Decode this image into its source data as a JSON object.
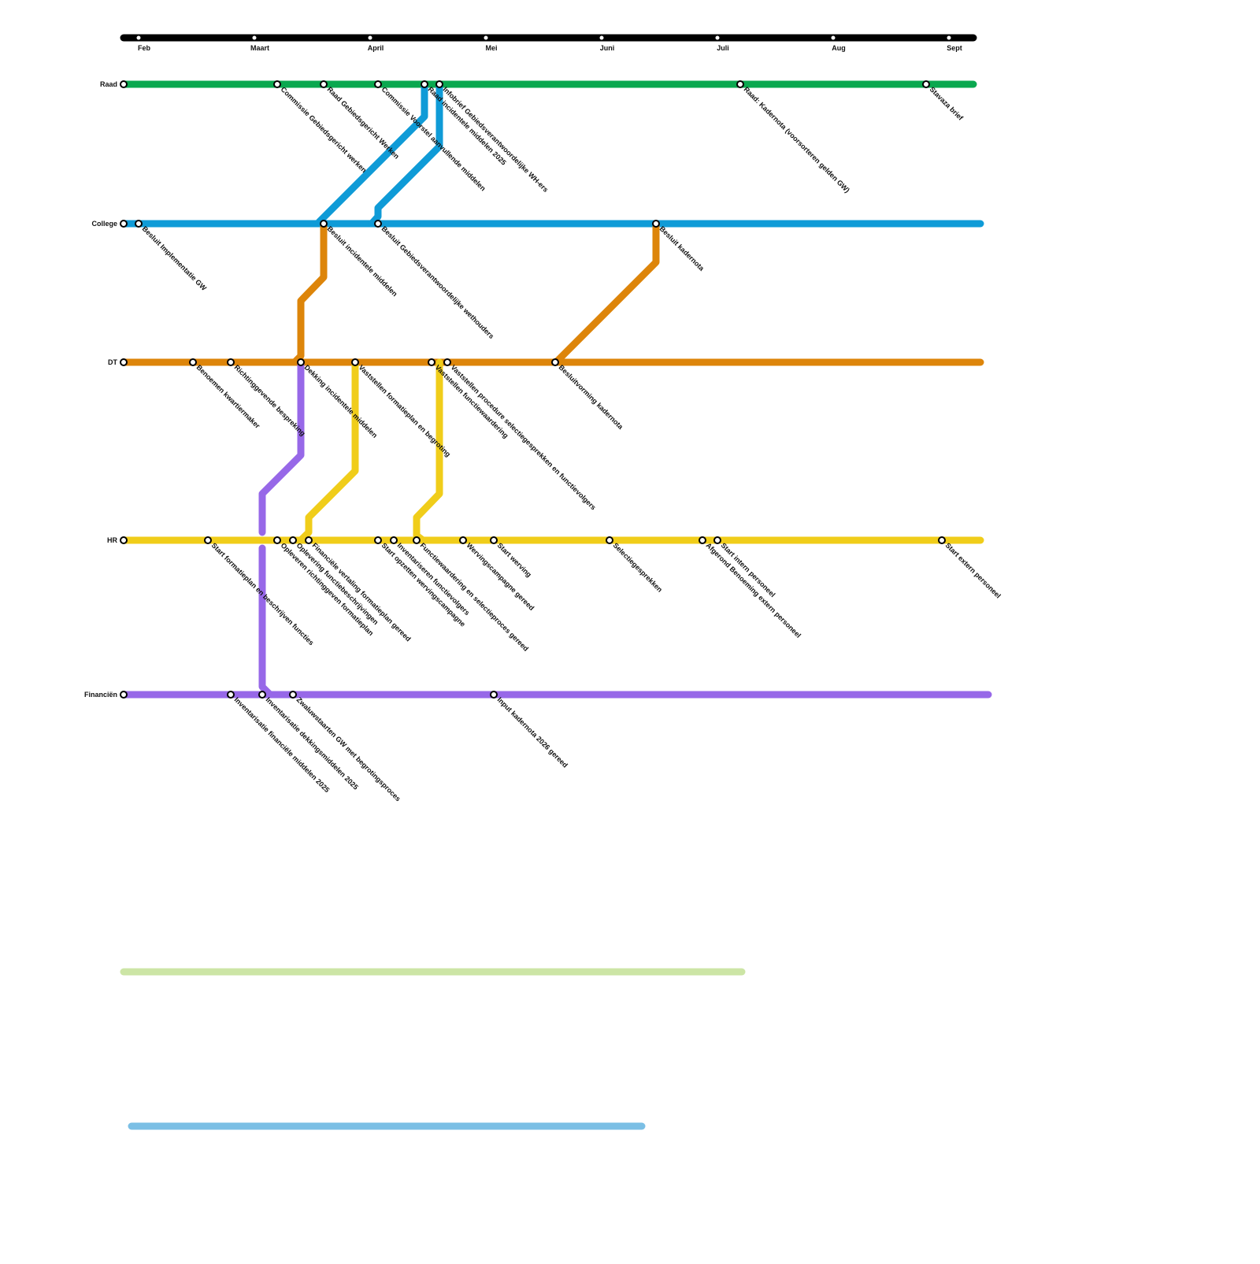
{
  "timeline": {
    "months": [
      "Feb",
      "Maart",
      "April",
      "Mei",
      "Juni",
      "Juli",
      "Aug",
      "Sept"
    ]
  },
  "lines": [
    {
      "name": "Raad",
      "stations": [
        "Commissie Gebiedsgericht werken",
        "Raad Gebiedsgericht Werken",
        "Commissie Voorstel aanvullende middelen",
        "Raad incidentele middelen 2025",
        "Infobrief Gebiedsverantwoordelijke WH-ers",
        "Raad: Kadernota (voorsorteren gelden GW)",
        "Stavaza brief"
      ]
    },
    {
      "name": "College",
      "stations": [
        "Besluit Implementatie GW",
        "Besluit incidentele middelen",
        "Besluit Gebiedsverantwoordelijke wethouders",
        "Besluit kadernota"
      ]
    },
    {
      "name": "DT",
      "stations": [
        "Benoemen kwartiermaker",
        "Richtinggevende bespreking",
        "Dekking incidentele middelen",
        "Vaststellen formatieplan en begroting",
        "Vaststellen functiewaardering",
        "Vaststellen procedure selectiegesprekken en functievolgers",
        "Besluitvorming kadernota"
      ]
    },
    {
      "name": "HR",
      "stations": [
        "Start formatieplan en beschrijven functies",
        "Opleveren richtinggeven formatieplan",
        "Oplevering functiebeschrijvingen",
        "Financiële vertaling formatieplan gereed",
        "Start opzetten wervingscampagne",
        "Inventariseren functievolgers",
        "Functiewaardering en selectieproces gereed",
        "Wervingscampagne gereed",
        "Start werving",
        "Selectiegesprekken",
        "Afgerond Benoeming extern personeel",
        "Start intern personeel",
        "Start extern personeel"
      ]
    },
    {
      "name": "Financiën",
      "stations": [
        "Inventarisatie financiële middelen 2025",
        "Inventarisatie dekkingsmiddelen 2025",
        "Zwaluwstaarten GW met begrotingsproces",
        "Input kadernota 2026 gereed"
      ]
    }
  ]
}
